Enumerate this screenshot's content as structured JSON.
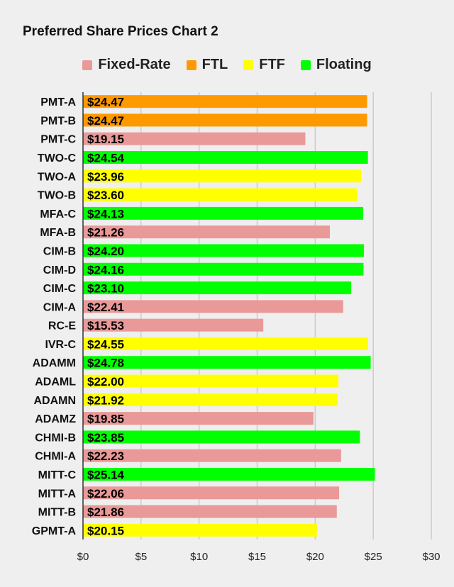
{
  "chart_data": {
    "type": "bar",
    "orientation": "horizontal",
    "title": "Preferred Share Prices Chart 2",
    "xlabel": "",
    "ylabel": "",
    "xlim": [
      0,
      30
    ],
    "x_ticks": [
      "$0",
      "$5",
      "$10",
      "$15",
      "$20",
      "$25",
      "$30"
    ],
    "grid": true,
    "legend_position": "top",
    "legend": [
      {
        "name": "Fixed-Rate",
        "color": "#ea9999"
      },
      {
        "name": "FTL",
        "color": "#ff9900"
      },
      {
        "name": "FTF",
        "color": "#ffff00"
      },
      {
        "name": "Floating",
        "color": "#00ff00"
      }
    ],
    "categories": [
      "PMT-A",
      "PMT-B",
      "PMT-C",
      "TWO-C",
      "TWO-A",
      "TWO-B",
      "MFA-C",
      "MFA-B",
      "CIM-B",
      "CIM-D",
      "CIM-C",
      "CIM-A",
      "RC-E",
      "IVR-C",
      "ADAMM",
      "ADAML",
      "ADAMN",
      "ADAMZ",
      "CHMI-B",
      "CHMI-A",
      "MITT-C",
      "MITT-A",
      "MITT-B",
      "GPMT-A"
    ],
    "values": [
      24.47,
      24.47,
      19.15,
      24.54,
      23.96,
      23.6,
      24.13,
      21.26,
      24.2,
      24.16,
      23.1,
      22.41,
      15.53,
      24.55,
      24.78,
      22.0,
      21.92,
      19.85,
      23.85,
      22.23,
      25.14,
      22.06,
      21.86,
      20.15
    ],
    "data_labels": [
      "$24.47",
      "$24.47",
      "$19.15",
      "$24.54",
      "$23.96",
      "$23.60",
      "$24.13",
      "$21.26",
      "$24.20",
      "$24.16",
      "$23.10",
      "$22.41",
      "$15.53",
      "$24.55",
      "$24.78",
      "$22.00",
      "$21.92",
      "$19.85",
      "$23.85",
      "$22.23",
      "$25.14",
      "$22.06",
      "$21.86",
      "$20.15"
    ],
    "types": [
      "FTL",
      "FTL",
      "Fixed-Rate",
      "Floating",
      "FTF",
      "FTF",
      "Floating",
      "Fixed-Rate",
      "Floating",
      "Floating",
      "Floating",
      "Fixed-Rate",
      "Fixed-Rate",
      "FTF",
      "Floating",
      "FTF",
      "FTF",
      "Fixed-Rate",
      "Floating",
      "Fixed-Rate",
      "Floating",
      "Fixed-Rate",
      "Fixed-Rate",
      "FTF"
    ]
  }
}
